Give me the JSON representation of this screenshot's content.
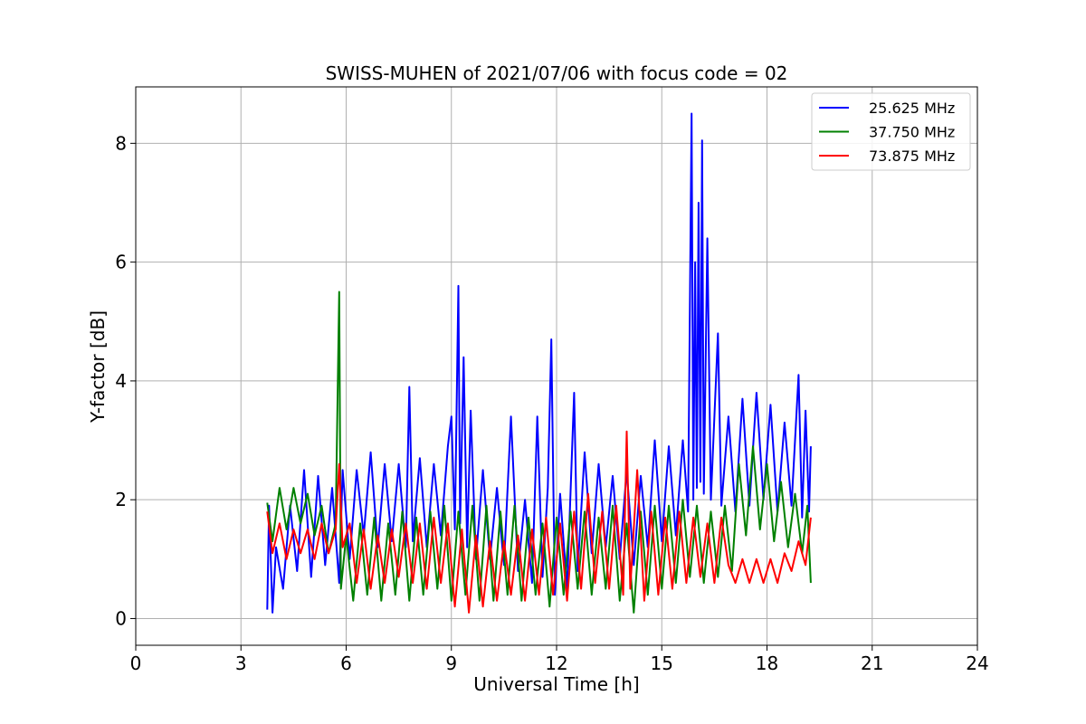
{
  "chart_data": {
    "type": "line",
    "title": "SWISS-MUHEN of 2021/07/06 with focus code = 02",
    "xlabel": "Universal Time [h]",
    "ylabel": "Y-factor [dB]",
    "xlim": [
      0,
      24
    ],
    "ylim": [
      -0.45,
      8.95
    ],
    "xticks": [
      0,
      3,
      6,
      9,
      12,
      15,
      18,
      21,
      24
    ],
    "yticks": [
      0,
      2,
      4,
      6,
      8
    ],
    "grid": true,
    "legend_position": "top-right",
    "series": [
      {
        "name": "25.625 MHz",
        "color": "#0000ff",
        "points": [
          [
            3.75,
            0.15
          ],
          [
            3.8,
            1.9
          ],
          [
            3.9,
            0.1
          ],
          [
            4.0,
            1.2
          ],
          [
            4.2,
            0.5
          ],
          [
            4.4,
            1.9
          ],
          [
            4.6,
            0.8
          ],
          [
            4.8,
            2.5
          ],
          [
            5.0,
            0.7
          ],
          [
            5.2,
            2.4
          ],
          [
            5.4,
            0.9
          ],
          [
            5.6,
            2.2
          ],
          [
            5.8,
            0.6
          ],
          [
            5.9,
            2.5
          ],
          [
            6.1,
            1.0
          ],
          [
            6.3,
            2.5
          ],
          [
            6.5,
            1.4
          ],
          [
            6.7,
            2.8
          ],
          [
            6.9,
            1.2
          ],
          [
            7.1,
            2.6
          ],
          [
            7.3,
            1.3
          ],
          [
            7.5,
            2.6
          ],
          [
            7.7,
            1.2
          ],
          [
            7.8,
            3.9
          ],
          [
            7.9,
            1.3
          ],
          [
            8.1,
            2.7
          ],
          [
            8.3,
            1.2
          ],
          [
            8.5,
            2.6
          ],
          [
            8.7,
            1.4
          ],
          [
            8.9,
            2.9
          ],
          [
            9.0,
            3.4
          ],
          [
            9.1,
            1.5
          ],
          [
            9.2,
            5.6
          ],
          [
            9.25,
            1.6
          ],
          [
            9.35,
            4.4
          ],
          [
            9.45,
            1.2
          ],
          [
            9.55,
            3.5
          ],
          [
            9.7,
            1.0
          ],
          [
            9.9,
            2.5
          ],
          [
            10.1,
            1.0
          ],
          [
            10.3,
            2.2
          ],
          [
            10.5,
            0.9
          ],
          [
            10.7,
            3.4
          ],
          [
            10.9,
            0.8
          ],
          [
            11.1,
            2.0
          ],
          [
            11.3,
            0.6
          ],
          [
            11.45,
            3.4
          ],
          [
            11.6,
            0.7
          ],
          [
            11.75,
            2.2
          ],
          [
            11.85,
            4.7
          ],
          [
            11.95,
            0.4
          ],
          [
            12.1,
            2.1
          ],
          [
            12.3,
            0.5
          ],
          [
            12.5,
            3.8
          ],
          [
            12.6,
            0.8
          ],
          [
            12.8,
            2.8
          ],
          [
            13.0,
            1.1
          ],
          [
            13.2,
            2.6
          ],
          [
            13.4,
            1.2
          ],
          [
            13.6,
            2.4
          ],
          [
            13.8,
            1.0
          ],
          [
            14.0,
            2.5
          ],
          [
            14.2,
            0.9
          ],
          [
            14.4,
            2.4
          ],
          [
            14.6,
            1.2
          ],
          [
            14.8,
            3.0
          ],
          [
            15.0,
            1.3
          ],
          [
            15.2,
            2.9
          ],
          [
            15.4,
            1.4
          ],
          [
            15.6,
            3.0
          ],
          [
            15.75,
            1.8
          ],
          [
            15.85,
            8.5
          ],
          [
            15.9,
            2.0
          ],
          [
            15.95,
            6.0
          ],
          [
            16.0,
            2.2
          ],
          [
            16.05,
            7.0
          ],
          [
            16.1,
            2.3
          ],
          [
            16.15,
            8.05
          ],
          [
            16.2,
            2.1
          ],
          [
            16.3,
            6.4
          ],
          [
            16.4,
            2.0
          ],
          [
            16.6,
            4.8
          ],
          [
            16.7,
            1.9
          ],
          [
            16.9,
            3.4
          ],
          [
            17.1,
            1.8
          ],
          [
            17.3,
            3.7
          ],
          [
            17.5,
            1.9
          ],
          [
            17.7,
            3.8
          ],
          [
            17.9,
            2.0
          ],
          [
            18.1,
            3.6
          ],
          [
            18.3,
            1.8
          ],
          [
            18.5,
            3.3
          ],
          [
            18.7,
            1.9
          ],
          [
            18.9,
            4.1
          ],
          [
            19.0,
            1.7
          ],
          [
            19.1,
            3.5
          ],
          [
            19.2,
            1.8
          ],
          [
            19.25,
            2.9
          ]
        ]
      },
      {
        "name": "37.750 MHz",
        "color": "#008000",
        "points": [
          [
            3.75,
            1.95
          ],
          [
            3.9,
            1.3
          ],
          [
            4.1,
            2.2
          ],
          [
            4.3,
            1.5
          ],
          [
            4.5,
            2.2
          ],
          [
            4.7,
            1.6
          ],
          [
            4.9,
            2.1
          ],
          [
            5.1,
            1.4
          ],
          [
            5.3,
            1.9
          ],
          [
            5.5,
            1.1
          ],
          [
            5.7,
            1.6
          ],
          [
            5.8,
            5.5
          ],
          [
            5.85,
            0.5
          ],
          [
            6.0,
            1.4
          ],
          [
            6.2,
            0.3
          ],
          [
            6.4,
            1.6
          ],
          [
            6.6,
            0.4
          ],
          [
            6.8,
            1.7
          ],
          [
            7.0,
            0.3
          ],
          [
            7.2,
            1.6
          ],
          [
            7.4,
            0.4
          ],
          [
            7.6,
            1.8
          ],
          [
            7.8,
            0.3
          ],
          [
            8.0,
            1.7
          ],
          [
            8.2,
            0.4
          ],
          [
            8.4,
            1.8
          ],
          [
            8.6,
            0.5
          ],
          [
            8.8,
            1.9
          ],
          [
            9.0,
            0.3
          ],
          [
            9.2,
            1.8
          ],
          [
            9.4,
            0.4
          ],
          [
            9.6,
            1.9
          ],
          [
            9.8,
            0.3
          ],
          [
            10.0,
            1.9
          ],
          [
            10.2,
            0.3
          ],
          [
            10.4,
            1.8
          ],
          [
            10.6,
            0.4
          ],
          [
            10.8,
            1.9
          ],
          [
            11.0,
            0.3
          ],
          [
            11.2,
            1.7
          ],
          [
            11.4,
            0.4
          ],
          [
            11.6,
            1.6
          ],
          [
            11.8,
            0.2
          ],
          [
            12.0,
            1.7
          ],
          [
            12.2,
            0.4
          ],
          [
            12.4,
            1.8
          ],
          [
            12.6,
            0.5
          ],
          [
            12.8,
            1.8
          ],
          [
            13.0,
            0.4
          ],
          [
            13.2,
            1.7
          ],
          [
            13.4,
            0.5
          ],
          [
            13.6,
            1.9
          ],
          [
            13.8,
            0.3
          ],
          [
            14.0,
            1.6
          ],
          [
            14.2,
            0.1
          ],
          [
            14.4,
            1.8
          ],
          [
            14.6,
            0.4
          ],
          [
            14.8,
            1.9
          ],
          [
            15.0,
            0.5
          ],
          [
            15.2,
            1.9
          ],
          [
            15.4,
            0.6
          ],
          [
            15.6,
            2.0
          ],
          [
            15.8,
            0.7
          ],
          [
            16.0,
            1.9
          ],
          [
            16.2,
            0.6
          ],
          [
            16.4,
            1.8
          ],
          [
            16.6,
            0.7
          ],
          [
            16.8,
            1.9
          ],
          [
            17.0,
            0.8
          ],
          [
            17.2,
            2.6
          ],
          [
            17.4,
            1.4
          ],
          [
            17.6,
            2.9
          ],
          [
            17.8,
            1.5
          ],
          [
            18.0,
            2.6
          ],
          [
            18.2,
            1.3
          ],
          [
            18.4,
            2.3
          ],
          [
            18.6,
            1.2
          ],
          [
            18.8,
            2.1
          ],
          [
            19.0,
            1.1
          ],
          [
            19.15,
            1.9
          ],
          [
            19.25,
            0.6
          ]
        ]
      },
      {
        "name": "73.875 MHz",
        "color": "#ff0000",
        "points": [
          [
            3.75,
            1.8
          ],
          [
            3.9,
            1.1
          ],
          [
            4.1,
            1.6
          ],
          [
            4.3,
            1.0
          ],
          [
            4.5,
            1.5
          ],
          [
            4.7,
            1.1
          ],
          [
            4.9,
            1.5
          ],
          [
            5.1,
            1.0
          ],
          [
            5.3,
            1.6
          ],
          [
            5.5,
            1.1
          ],
          [
            5.7,
            1.5
          ],
          [
            5.8,
            2.6
          ],
          [
            5.9,
            1.2
          ],
          [
            6.1,
            1.6
          ],
          [
            6.3,
            0.6
          ],
          [
            6.5,
            1.5
          ],
          [
            6.7,
            0.5
          ],
          [
            6.9,
            1.4
          ],
          [
            7.1,
            0.6
          ],
          [
            7.3,
            1.5
          ],
          [
            7.5,
            0.7
          ],
          [
            7.7,
            1.6
          ],
          [
            7.9,
            0.6
          ],
          [
            8.1,
            1.6
          ],
          [
            8.3,
            0.5
          ],
          [
            8.5,
            1.7
          ],
          [
            8.7,
            0.6
          ],
          [
            8.9,
            1.6
          ],
          [
            9.1,
            0.2
          ],
          [
            9.3,
            1.5
          ],
          [
            9.5,
            0.1
          ],
          [
            9.7,
            1.4
          ],
          [
            9.9,
            0.2
          ],
          [
            10.1,
            1.3
          ],
          [
            10.3,
            0.3
          ],
          [
            10.5,
            1.3
          ],
          [
            10.7,
            0.4
          ],
          [
            10.9,
            1.4
          ],
          [
            11.1,
            0.3
          ],
          [
            11.3,
            1.5
          ],
          [
            11.5,
            0.4
          ],
          [
            11.7,
            1.7
          ],
          [
            11.9,
            0.4
          ],
          [
            12.1,
            1.6
          ],
          [
            12.3,
            0.3
          ],
          [
            12.5,
            1.8
          ],
          [
            12.7,
            0.5
          ],
          [
            12.9,
            2.1
          ],
          [
            13.1,
            0.6
          ],
          [
            13.3,
            1.8
          ],
          [
            13.5,
            0.5
          ],
          [
            13.7,
            1.9
          ],
          [
            13.9,
            0.4
          ],
          [
            14.0,
            3.15
          ],
          [
            14.1,
            0.5
          ],
          [
            14.3,
            2.5
          ],
          [
            14.5,
            0.3
          ],
          [
            14.7,
            1.8
          ],
          [
            14.9,
            0.4
          ],
          [
            15.1,
            1.7
          ],
          [
            15.3,
            0.5
          ],
          [
            15.5,
            1.8
          ],
          [
            15.7,
            0.6
          ],
          [
            15.9,
            1.7
          ],
          [
            16.1,
            0.7
          ],
          [
            16.3,
            1.6
          ],
          [
            16.5,
            0.6
          ],
          [
            16.7,
            1.7
          ],
          [
            16.9,
            0.9
          ],
          [
            17.1,
            0.6
          ],
          [
            17.3,
            1.0
          ],
          [
            17.5,
            0.6
          ],
          [
            17.7,
            1.0
          ],
          [
            17.9,
            0.6
          ],
          [
            18.1,
            1.0
          ],
          [
            18.3,
            0.6
          ],
          [
            18.5,
            1.1
          ],
          [
            18.7,
            0.8
          ],
          [
            18.9,
            1.3
          ],
          [
            19.1,
            0.9
          ],
          [
            19.25,
            1.7
          ]
        ]
      }
    ]
  }
}
